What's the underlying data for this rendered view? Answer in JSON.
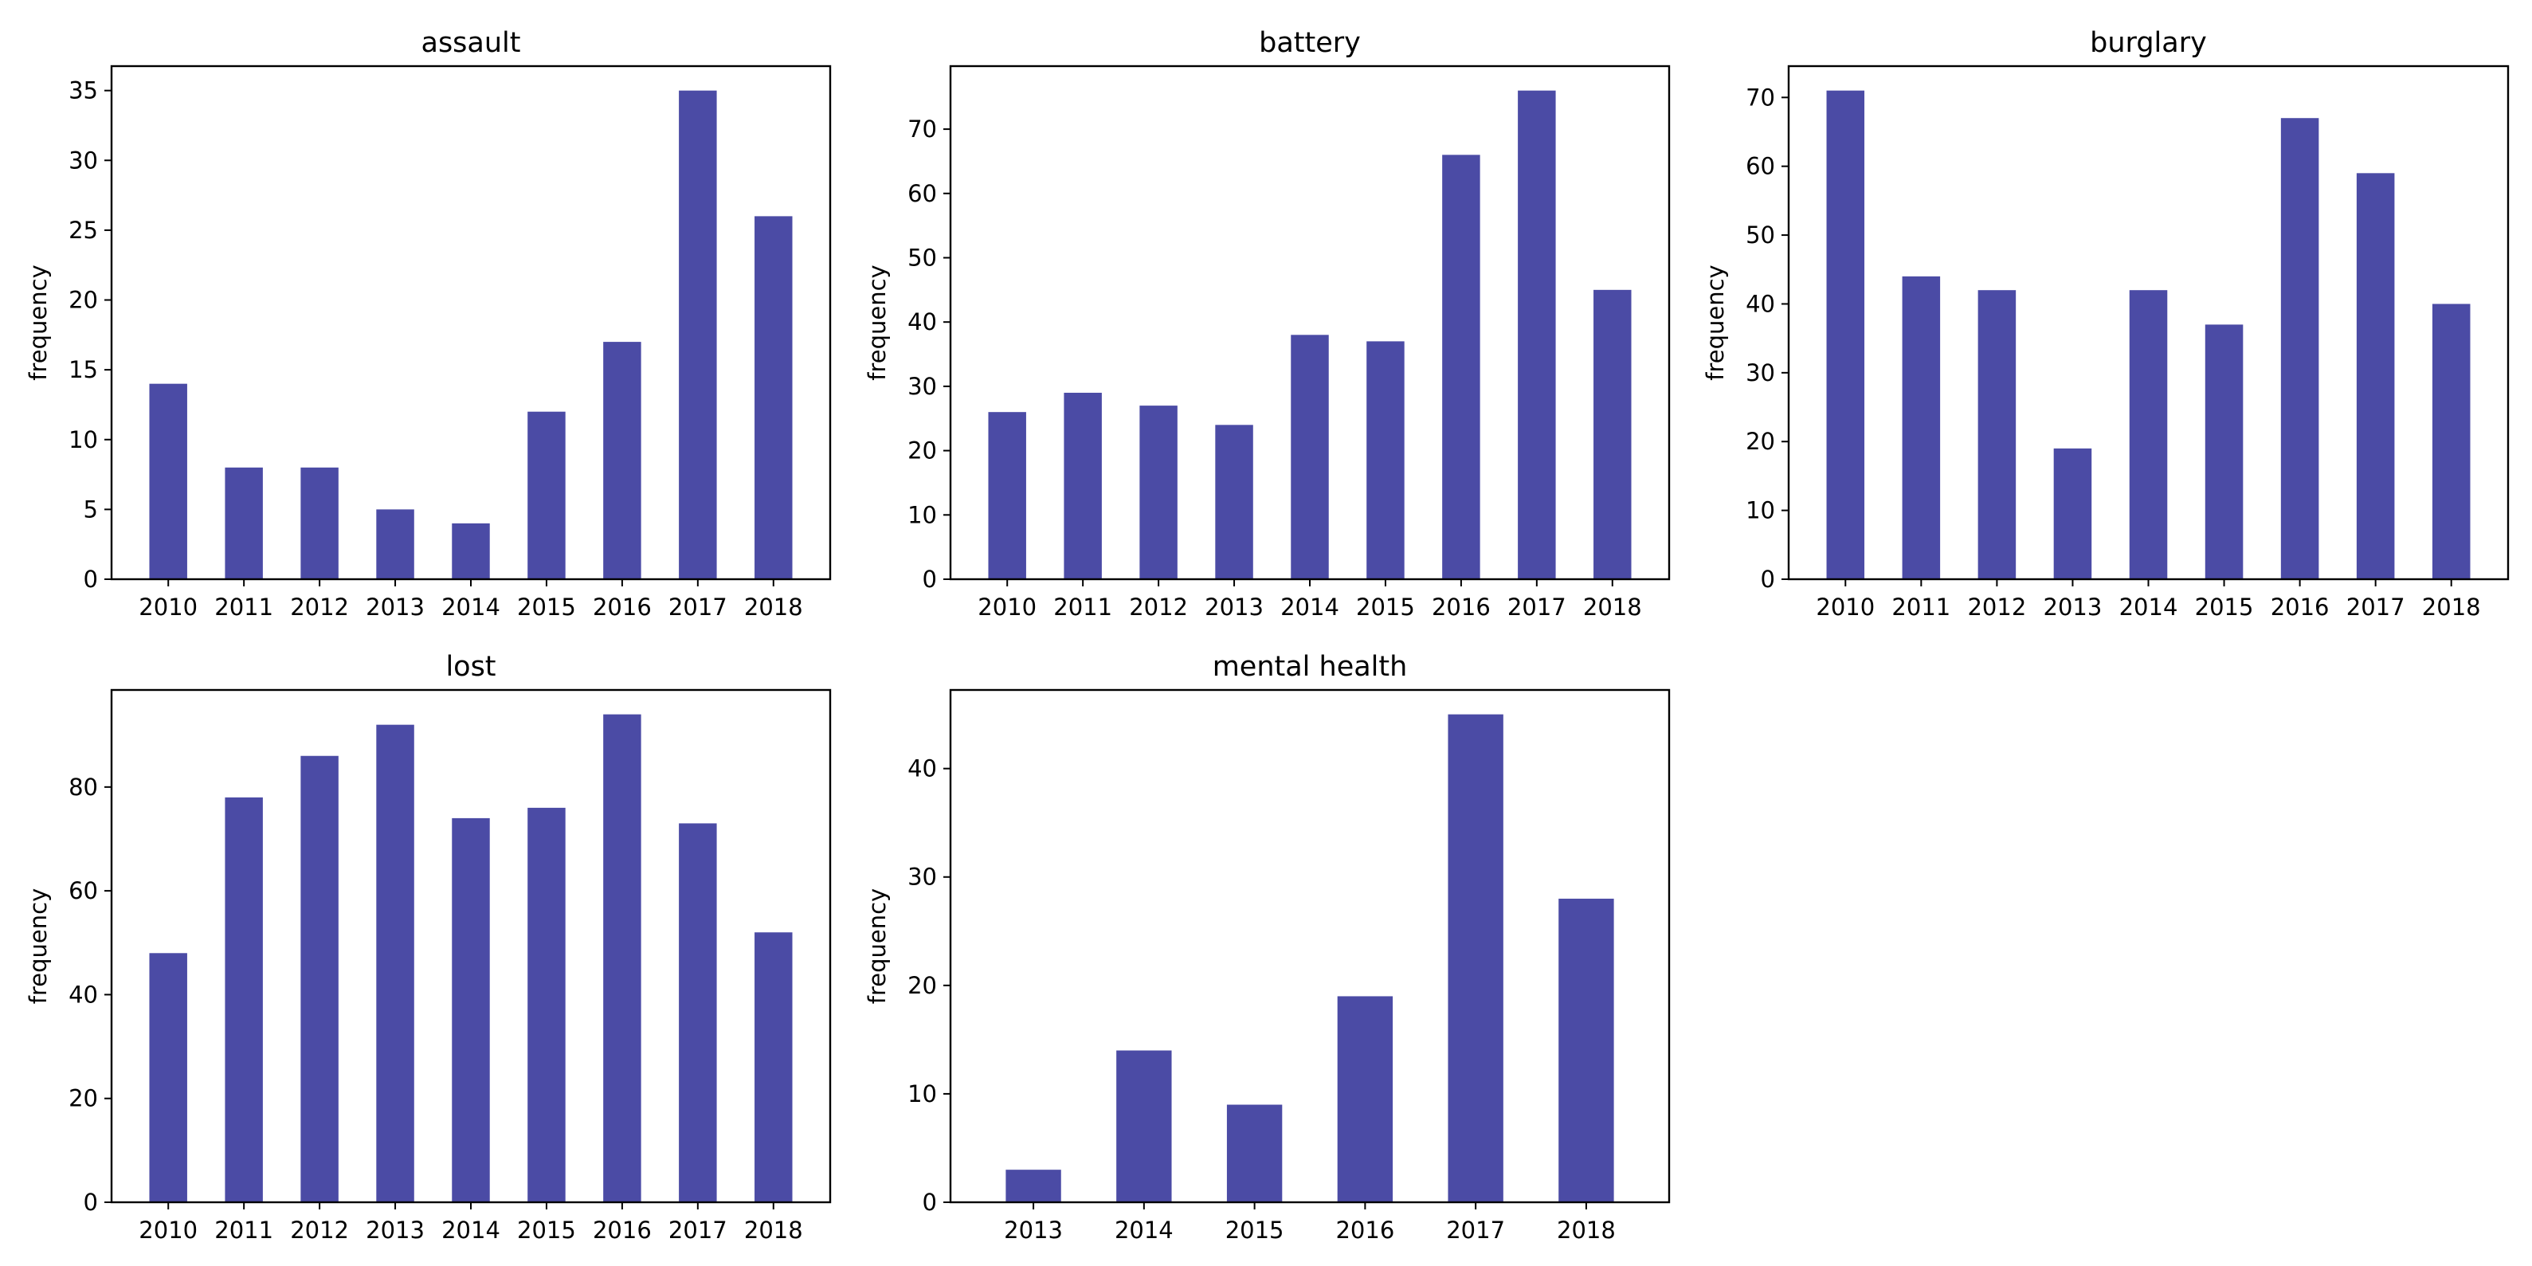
{
  "colors": {
    "bar": "#4b4ba5",
    "axis": "#000000",
    "background": "#ffffff"
  },
  "chart_data": [
    {
      "type": "bar",
      "title": "assault",
      "xlabel": "",
      "ylabel": "frequency",
      "categories": [
        "2010",
        "2011",
        "2012",
        "2013",
        "2014",
        "2015",
        "2016",
        "2017",
        "2018"
      ],
      "values": [
        14,
        8,
        8,
        5,
        4,
        12,
        17,
        35,
        26
      ],
      "ylim": [
        0,
        36.75
      ],
      "yticks": [
        0,
        5,
        10,
        15,
        20,
        25,
        30,
        35
      ],
      "grid": false
    },
    {
      "type": "bar",
      "title": "battery",
      "xlabel": "",
      "ylabel": "frequency",
      "categories": [
        "2010",
        "2011",
        "2012",
        "2013",
        "2014",
        "2015",
        "2016",
        "2017",
        "2018"
      ],
      "values": [
        26,
        29,
        27,
        24,
        38,
        37,
        66,
        76,
        45
      ],
      "ylim": [
        0,
        79.8
      ],
      "yticks": [
        0,
        10,
        20,
        30,
        40,
        50,
        60,
        70
      ],
      "grid": false
    },
    {
      "type": "bar",
      "title": "burglary",
      "xlabel": "",
      "ylabel": "frequency",
      "categories": [
        "2010",
        "2011",
        "2012",
        "2013",
        "2014",
        "2015",
        "2016",
        "2017",
        "2018"
      ],
      "values": [
        71,
        44,
        42,
        19,
        42,
        37,
        67,
        59,
        40
      ],
      "ylim": [
        0,
        74.55
      ],
      "yticks": [
        0,
        10,
        20,
        30,
        40,
        50,
        60,
        70
      ],
      "grid": false
    },
    {
      "type": "bar",
      "title": "lost",
      "xlabel": "",
      "ylabel": "frequency",
      "categories": [
        "2010",
        "2011",
        "2012",
        "2013",
        "2014",
        "2015",
        "2016",
        "2017",
        "2018"
      ],
      "values": [
        48,
        78,
        86,
        92,
        74,
        76,
        94,
        73,
        52
      ],
      "ylim": [
        0,
        98.7
      ],
      "yticks": [
        0,
        20,
        40,
        60,
        80
      ],
      "grid": false
    },
    {
      "type": "bar",
      "title": "mental health",
      "xlabel": "",
      "ylabel": "frequency",
      "categories": [
        "2013",
        "2014",
        "2015",
        "2016",
        "2017",
        "2018"
      ],
      "values": [
        3,
        14,
        9,
        19,
        45,
        28
      ],
      "ylim": [
        0,
        47.25
      ],
      "yticks": [
        0,
        10,
        20,
        30,
        40
      ],
      "grid": false
    }
  ]
}
